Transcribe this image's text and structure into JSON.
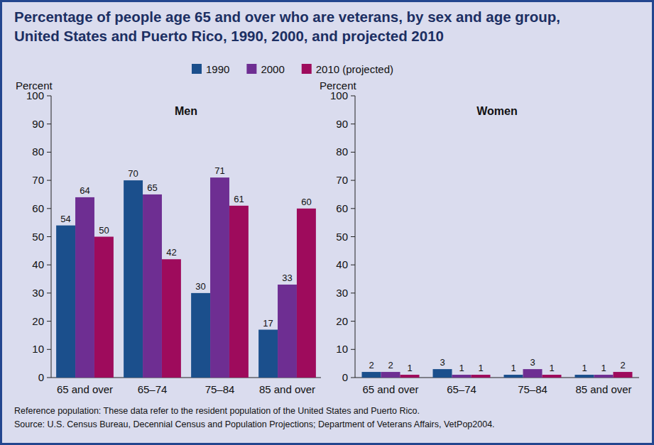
{
  "title": [
    "Percentage of people age 65 and over who are veterans, by sex and age group,",
    "United States and Puerto Rico, 1990, 2000, and projected 2010"
  ],
  "notes": [
    "Reference population: These data refer to the resident population of the United States and Puerto Rico.",
    "Source:  U.S. Census Bureau, Decennial Census and Population Projections; Department of Veterans Affairs, VetPop2004."
  ],
  "chart_data": [
    {
      "type": "bar",
      "title": "Men",
      "ylabel": "Percent",
      "categories": [
        "65 and over",
        "65–74",
        "75–84",
        "85 and over"
      ],
      "series": [
        {
          "name": "1990",
          "color": "#1b4f8c",
          "values": [
            54,
            70,
            30,
            17
          ]
        },
        {
          "name": "2000",
          "color": "#6e2e92",
          "values": [
            64,
            65,
            71,
            33
          ]
        },
        {
          "name": "2010 (projected)",
          "color": "#9e0b5c",
          "values": [
            50,
            42,
            61,
            60
          ]
        }
      ],
      "ylim": [
        0,
        100
      ],
      "yticks": [
        0,
        10,
        20,
        30,
        40,
        50,
        60,
        70,
        80,
        90,
        100
      ],
      "grid": false,
      "data_labels": true,
      "legend": "top"
    },
    {
      "type": "bar",
      "title": "Women",
      "ylabel": "Percent",
      "categories": [
        "65 and over",
        "65–74",
        "75–84",
        "85 and over"
      ],
      "series": [
        {
          "name": "1990",
          "color": "#1b4f8c",
          "values": [
            2,
            3,
            1,
            1
          ]
        },
        {
          "name": "2000",
          "color": "#6e2e92",
          "values": [
            2,
            1,
            3,
            1
          ]
        },
        {
          "name": "2010 (projected)",
          "color": "#9e0b5c",
          "values": [
            1,
            1,
            1,
            2
          ]
        }
      ],
      "ylim": [
        0,
        100
      ],
      "yticks": [
        0,
        10,
        20,
        30,
        40,
        50,
        60,
        70,
        80,
        90,
        100
      ],
      "grid": false,
      "data_labels": true
    }
  ]
}
